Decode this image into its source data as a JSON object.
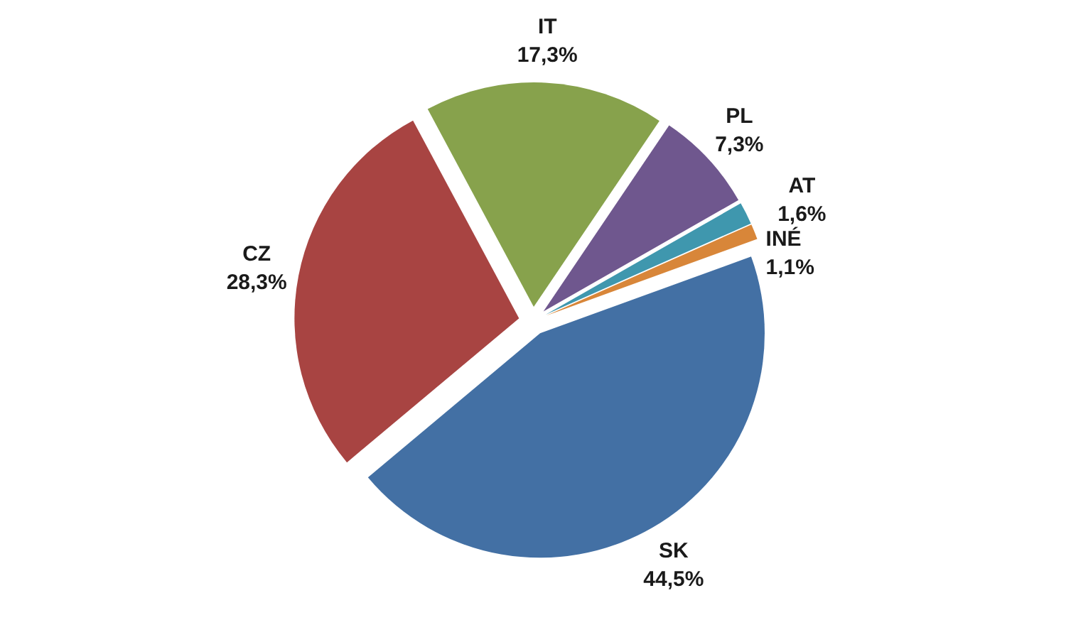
{
  "chart_data": {
    "type": "pie",
    "categories": [
      "SK",
      "CZ",
      "IT",
      "PL",
      "AT",
      "INÉ"
    ],
    "values": [
      44.5,
      28.3,
      17.3,
      7.3,
      1.6,
      1.1
    ],
    "colors": [
      "#4370a4",
      "#a84442",
      "#87a24c",
      "#6f578e",
      "#3f97ae",
      "#d88639"
    ],
    "value_labels": [
      "44,5%",
      "28,3%",
      "17,3%",
      "7,3%",
      "1,6%",
      "1,1%"
    ]
  }
}
